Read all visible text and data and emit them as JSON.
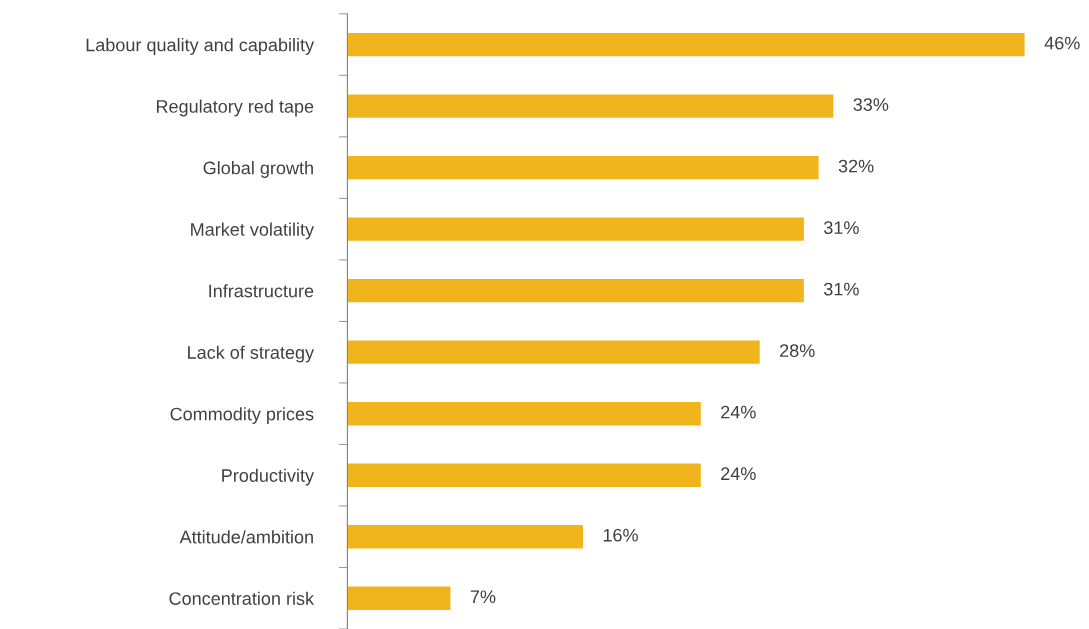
{
  "chart_data": {
    "type": "bar",
    "orientation": "horizontal",
    "categories": [
      "Labour quality and capability",
      "Regulatory red tape",
      "Global growth",
      "Market volatility",
      "Infrastructure",
      "Lack of strategy",
      "Commodity prices",
      "Productivity",
      "Attitude/ambition",
      "Concentration risk"
    ],
    "values": [
      46,
      33,
      32,
      31,
      31,
      28,
      24,
      24,
      16,
      7
    ],
    "value_labels": [
      "46%",
      "33%",
      "32%",
      "31%",
      "31%",
      "28%",
      "24%",
      "24%",
      "16%",
      "7%"
    ],
    "color": "#f0b41c",
    "grid": false,
    "legend": false
  }
}
